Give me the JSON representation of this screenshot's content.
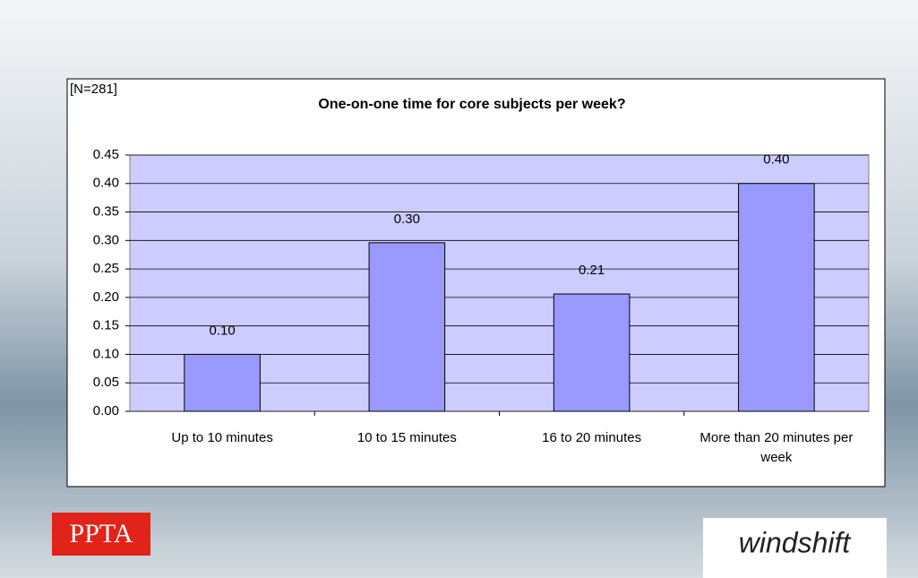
{
  "chart_data": {
    "type": "bar",
    "title": "One-on-one time for core subjects per week?",
    "annotation": "[N=281]",
    "categories": [
      "Up to 10 minutes",
      "10 to 15 minutes",
      "16 to 20 minutes",
      "More than 20 minutes per week"
    ],
    "values": [
      0.1,
      0.296,
      0.206,
      0.4
    ],
    "value_labels": [
      "0.10",
      "0.30",
      "0.21",
      "0.40"
    ],
    "color": "#9999ff",
    "ylim": [
      0,
      0.45
    ],
    "yticks": [
      {
        "value": 0,
        "label": "0.00"
      },
      {
        "value": 0.05,
        "label": "0.05"
      },
      {
        "value": 0.1,
        "label": "0.10"
      },
      {
        "value": 0.15,
        "label": "0.15"
      },
      {
        "value": 0.2,
        "label": "0.20"
      },
      {
        "value": 0.25,
        "label": "0.25"
      },
      {
        "value": 0.3,
        "label": "0.30"
      },
      {
        "value": 0.35,
        "label": "0.35"
      },
      {
        "value": 0.4,
        "label": "0.40"
      },
      {
        "value": 0.45,
        "label": "0.45"
      }
    ],
    "grid": true
  },
  "logos": [
    "PPTA",
    "windshift"
  ]
}
